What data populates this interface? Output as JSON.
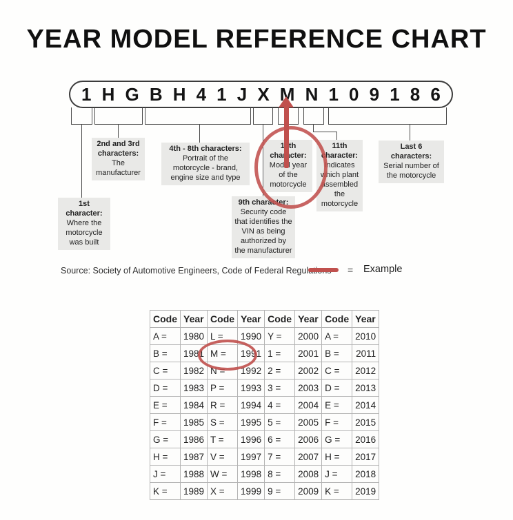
{
  "title": "YEAR MODEL REFERENCE CHART",
  "vin": {
    "characters": [
      "1",
      "H",
      "G",
      "B",
      "H",
      "4",
      "1",
      "J",
      "X",
      "M",
      "N",
      "1",
      "0",
      "9",
      "1",
      "8",
      "6"
    ]
  },
  "callouts": {
    "first": {
      "heading": "1st character:",
      "body": "Where the motorcycle was built"
    },
    "second_third": {
      "heading": "2nd and 3rd characters:",
      "body": "The manufacturer"
    },
    "fourth_to_eighth": {
      "heading": "4th - 8th characters:",
      "body": "Portrait of the motorcycle - brand, engine size and type"
    },
    "ninth": {
      "heading": "9th character:",
      "body": "Security code that identifies the VIN as being authorized by the manufacturer"
    },
    "tenth": {
      "heading": "10th character:",
      "body": "Model year of the motorcycle"
    },
    "eleventh": {
      "heading": "11th character:",
      "body": "Indicates which plant assembled the motorcycle"
    },
    "last_six": {
      "heading": "Last 6 characters:",
      "body": "Serial number of the motorcycle"
    }
  },
  "source": {
    "text": "Source:  Society of Automotive Engineers, Code of Federal Regulations"
  },
  "legend": {
    "equals": "=",
    "label": "Example"
  },
  "colors": {
    "accent_red": "#c0504d",
    "callout_bg": "#e9e9e7",
    "table_border": "#b3b3b3",
    "diagram_line": "#4a4a4a"
  },
  "year_table": {
    "headers": [
      "Code",
      "Year",
      "Code",
      "Year",
      "Code",
      "Year",
      "Code",
      "Year"
    ],
    "rows": [
      [
        "A =",
        "1980",
        "L =",
        "1990",
        "Y =",
        "2000",
        "A =",
        "2010"
      ],
      [
        "B =",
        "1981",
        "M =",
        "1991",
        "1 =",
        "2001",
        "B =",
        "2011"
      ],
      [
        "C =",
        "1982",
        "N =",
        "1992",
        "2 =",
        "2002",
        "C =",
        "2012"
      ],
      [
        "D =",
        "1983",
        "P =",
        "1993",
        "3 =",
        "2003",
        "D =",
        "2013"
      ],
      [
        "E =",
        "1984",
        "R =",
        "1994",
        "4 =",
        "2004",
        "E =",
        "2014"
      ],
      [
        "F =",
        "1985",
        "S =",
        "1995",
        "5 =",
        "2005",
        "F =",
        "2015"
      ],
      [
        "G =",
        "1986",
        "T =",
        "1996",
        "6 =",
        "2006",
        "G =",
        "2016"
      ],
      [
        "H =",
        "1987",
        "V =",
        "1997",
        "7 =",
        "2007",
        "H =",
        "2017"
      ],
      [
        "J =",
        "1988",
        "W =",
        "1998",
        "8 =",
        "2008",
        "J =",
        "2018"
      ],
      [
        "K =",
        "1989",
        "X =",
        "1999",
        "9 =",
        "2009",
        "K =",
        "2019"
      ]
    ],
    "highlighted": "M = 1991"
  }
}
